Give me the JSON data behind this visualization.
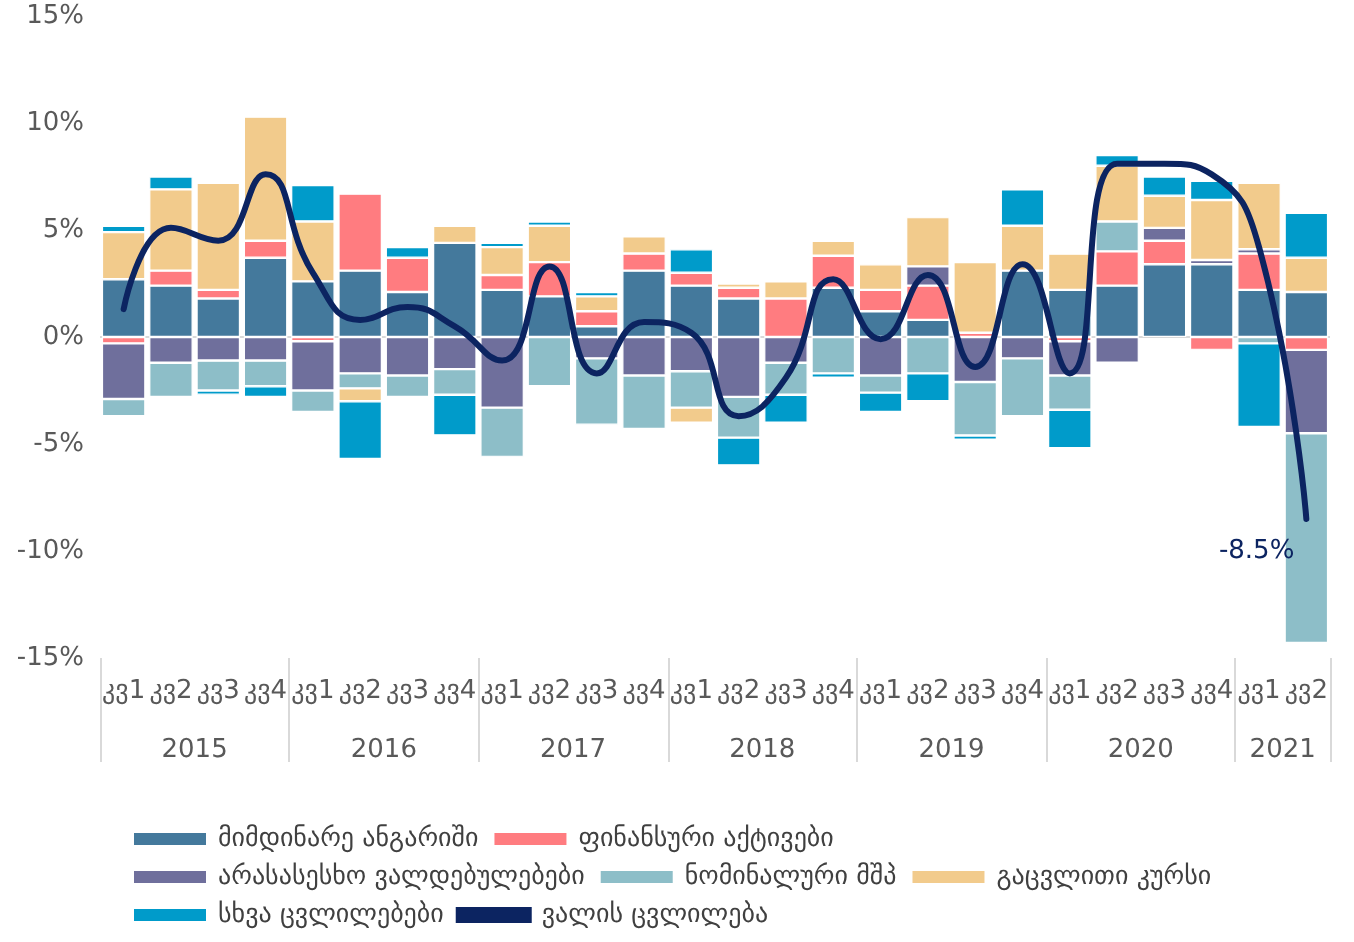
{
  "chart_data": {
    "type": "bar",
    "stacked": true,
    "categories": [
      "კვ1",
      "კვ2",
      "კვ3",
      "კვ4",
      "კვ1",
      "კვ2",
      "კვ3",
      "კვ4",
      "კვ1",
      "კვ2",
      "კვ3",
      "კვ4",
      "კვ1",
      "კვ2",
      "კვ3",
      "კვ4",
      "კვ1",
      "კვ2",
      "კვ3",
      "კვ4",
      "კვ1",
      "კვ2",
      "კვ3",
      "კვ4",
      "კვ1",
      "კვ2"
    ],
    "annotations": [
      "2015",
      "2016",
      "2017",
      "2018",
      "2019",
      "2020",
      "2021"
    ],
    "ylim": [
      -15,
      15
    ],
    "yticks": [
      {
        "value": -15,
        "label": "-15%"
      },
      {
        "value": -10,
        "label": "-10%"
      },
      {
        "value": -5,
        "label": "-5%"
      },
      {
        "value": 0,
        "label": "0%"
      },
      {
        "value": 5,
        "label": "5%"
      },
      {
        "value": 10,
        "label": "10%"
      },
      {
        "value": 15,
        "label": "15%"
      }
    ],
    "grid": false,
    "legend": "bottom",
    "ref_lines": [
      {
        "axis": "y",
        "value": 0,
        "color": "#d9d9d9"
      }
    ],
    "series": [
      {
        "name": "მიმდინარე ანგარიში",
        "color": "#44799c",
        "values": [
          2.7,
          2.4,
          1.8,
          3.7,
          2.6,
          3.1,
          2.1,
          4.4,
          2.2,
          1.9,
          0.5,
          3.1,
          2.4,
          1.8,
          null,
          2.3,
          1.2,
          0.8,
          null,
          3.1,
          2.2,
          2.4,
          3.4,
          3.4,
          2.2,
          2.1
        ]
      },
      {
        "name": "ფინანსური აქტივები",
        "color": "#ff7c80",
        "values": [
          -0.3,
          0.7,
          0.4,
          0.8,
          -0.2,
          3.6,
          1.6,
          null,
          0.7,
          1.6,
          0.7,
          0.8,
          0.6,
          0.5,
          1.8,
          1.5,
          1.0,
          1.6,
          0.2,
          null,
          -0.2,
          1.6,
          1.1,
          -0.6,
          1.7,
          -0.6
        ]
      },
      {
        "name": "არასასესხო ვალდებულებები",
        "color": "#6f6f9c",
        "values": [
          -2.6,
          -1.2,
          -1.1,
          -1.1,
          -2.3,
          -1.7,
          -1.8,
          -1.5,
          -3.3,
          null,
          -1.0,
          -1.8,
          -1.6,
          -2.8,
          -1.2,
          null,
          -1.8,
          0.9,
          -2.1,
          -1.0,
          -1.6,
          -1.2,
          0.6,
          0.2,
          0.2,
          -3.9
        ]
      },
      {
        "name": "ნომინალური მშპ",
        "color": "#8dbec8",
        "values": [
          -0.8,
          -1.6,
          -1.4,
          -1.2,
          -1.0,
          -0.7,
          -1.0,
          -1.2,
          -2.3,
          -2.3,
          -3.1,
          -2.5,
          -1.7,
          -1.9,
          -1.5,
          -1.7,
          -0.8,
          -1.7,
          -2.5,
          -2.7,
          -1.6,
          1.4,
          null,
          null,
          -0.3,
          -9.8
        ]
      },
      {
        "name": "გაცვლითი კურსი",
        "color": "#f2cb8c",
        "values": [
          2.2,
          3.8,
          5.0,
          5.8,
          2.8,
          -0.6,
          null,
          0.8,
          1.3,
          1.7,
          0.7,
          0.8,
          -0.7,
          0.2,
          0.8,
          0.7,
          1.2,
          2.3,
          3.3,
          2.1,
          1.7,
          2.6,
          1.5,
          2.8,
          3.1,
          1.6
        ]
      },
      {
        "name": "სხვა ცვლილებები",
        "color": "#009bca",
        "values": [
          0.3,
          0.6,
          -0.2,
          -0.5,
          1.7,
          -2.7,
          0.5,
          -1.9,
          0.2,
          0.2,
          0.2,
          null,
          1.1,
          -1.3,
          -1.3,
          -0.2,
          -0.9,
          -1.3,
          -0.2,
          1.7,
          -1.8,
          0.5,
          0.9,
          0.9,
          -3.9,
          2.1
        ]
      },
      {
        "name": "ვალის ცვლილება",
        "type": "line",
        "color": "#0c2461",
        "marker": "none",
        "line_style": "solid",
        "values": [
          1.3,
          5.1,
          4.5,
          7.6,
          3.0,
          0.8,
          1.4,
          0.5,
          -1.1,
          3.3,
          -1.7,
          0.7,
          0.2,
          -3.7,
          -1.9,
          2.7,
          -0.1,
          2.9,
          -1.4,
          3.4,
          -1.7,
          8.1,
          8.1,
          7.6,
          4.2,
          -8.5
        ],
        "value_labels": [
          null,
          null,
          null,
          null,
          null,
          null,
          null,
          null,
          null,
          null,
          null,
          null,
          null,
          null,
          null,
          null,
          null,
          null,
          null,
          null,
          null,
          null,
          null,
          null,
          null,
          "-8.5%"
        ]
      }
    ]
  }
}
